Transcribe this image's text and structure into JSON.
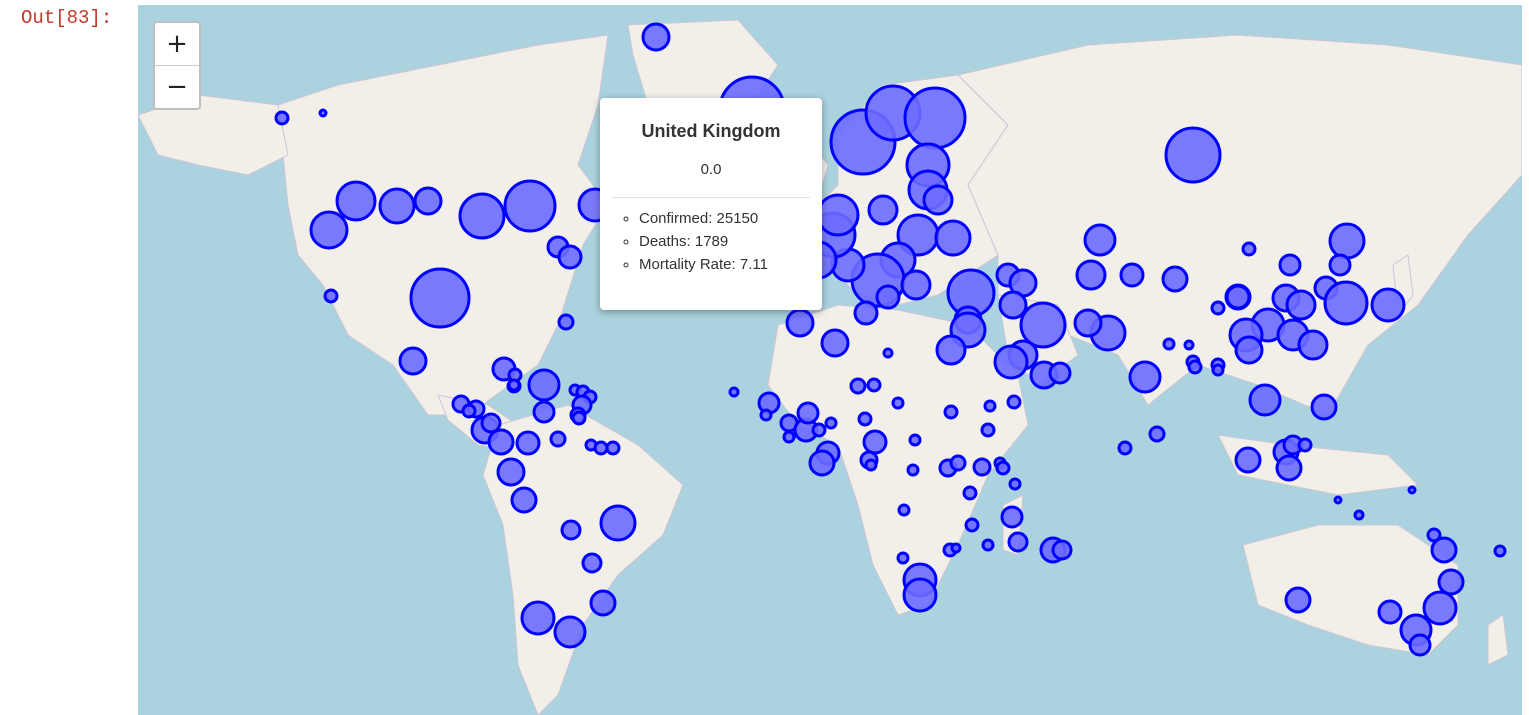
{
  "cell": {
    "output_label": "Out[83]:"
  },
  "map": {
    "land_color": "#f2efe9",
    "water_color": "#aad3df",
    "marker_stroke": "#0000ff",
    "marker_fill": "#6b6bff"
  },
  "zoom": {
    "in_label": "+",
    "out_label": "−"
  },
  "popup": {
    "title": "United Kingdom",
    "value": "0.0",
    "items": [
      "Confirmed: 25150",
      "Deaths: 1789",
      "Mortality Rate: 7.11"
    ]
  }
}
